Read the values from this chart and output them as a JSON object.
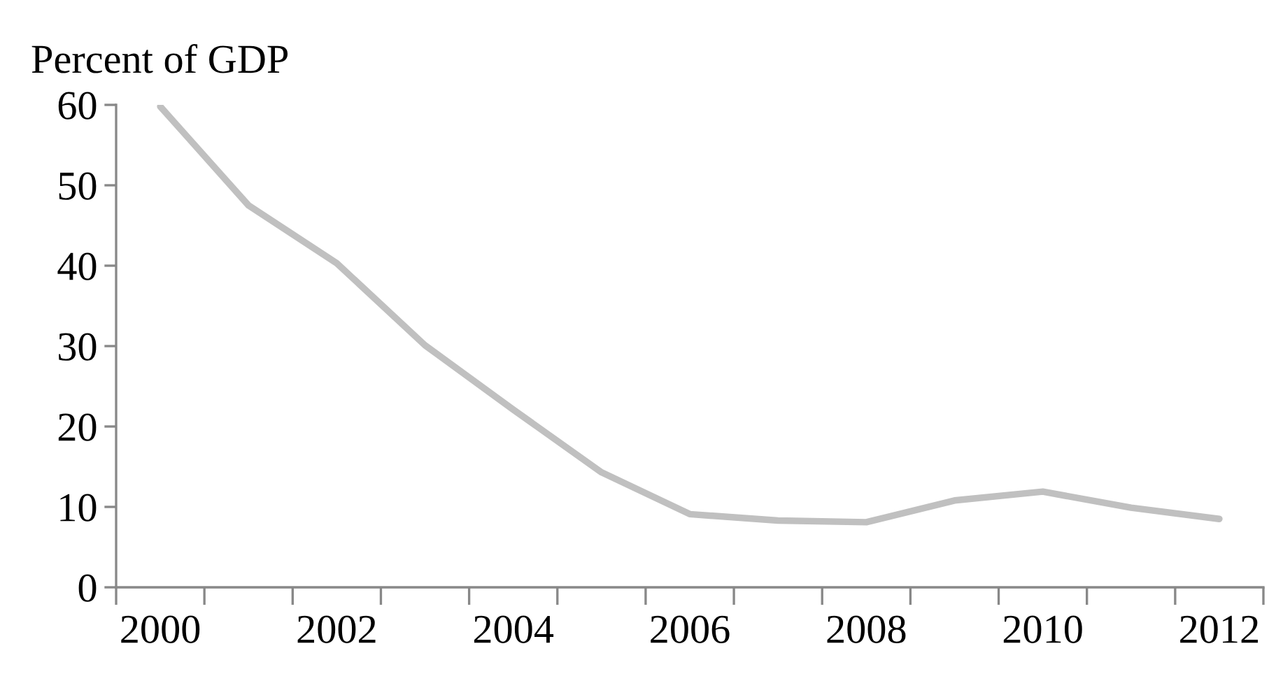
{
  "chart_data": {
    "type": "line",
    "ylabel": "Percent of GDP",
    "categories": [
      "2000",
      null,
      "2002",
      null,
      "2004",
      null,
      "2006",
      null,
      "2008",
      null,
      "2010",
      null,
      "2012"
    ],
    "series": [
      {
        "color": "#c0c0c0",
        "values": [
          59.8,
          47.5,
          40.3,
          30.1,
          22.1,
          14.3,
          9.1,
          8.3,
          8.1,
          10.8,
          11.9,
          9.9,
          8.5
        ]
      }
    ],
    "ylim": [
      0,
      60
    ],
    "yticks": [
      0,
      10,
      20,
      30,
      40,
      50,
      60
    ],
    "grid": false,
    "legend": false,
    "marker": "none",
    "line_style": "solid"
  }
}
